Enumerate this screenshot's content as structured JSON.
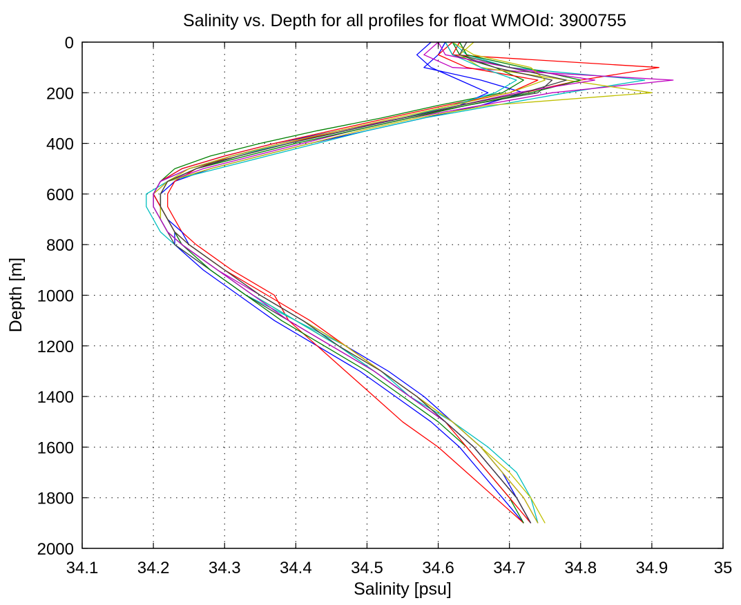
{
  "chart_data": {
    "type": "line",
    "title": "Salinity vs. Depth for all profiles for float WMOId: 3900755",
    "xlabel": "Salinity [psu]",
    "ylabel": "Depth [m]",
    "xlim": [
      34.1,
      35
    ],
    "ylim": [
      0,
      2000
    ],
    "y_reversed": true,
    "grid": true,
    "legend": "none",
    "x_ticks": [
      "34.1",
      "34.2",
      "34.3",
      "34.4",
      "34.5",
      "34.6",
      "34.7",
      "34.8",
      "34.9",
      "35"
    ],
    "y_ticks": [
      "0",
      "200",
      "400",
      "600",
      "800",
      "1000",
      "1200",
      "1400",
      "1600",
      "1800",
      "2000"
    ],
    "depth_levels": [
      0,
      50,
      100,
      150,
      200,
      250,
      300,
      350,
      400,
      450,
      500,
      550,
      600,
      650,
      700,
      750,
      800,
      900,
      1000,
      1100,
      1200,
      1300,
      1400,
      1500,
      1600,
      1700,
      1800,
      1900
    ],
    "colors": [
      "#0000ff",
      "#008000",
      "#ff0000",
      "#00bfbf",
      "#bf00bf",
      "#bfbf00",
      "#404040"
    ],
    "series": [
      {
        "color": "#0000ff",
        "values": [
          34.61,
          34.6,
          34.58,
          34.66,
          34.72,
          34.66,
          34.58,
          34.5,
          34.42,
          34.35,
          34.28,
          34.23,
          34.21,
          34.21,
          34.22,
          34.23,
          34.23,
          34.27,
          34.32,
          34.37,
          34.43,
          34.49,
          34.54,
          34.59,
          34.63,
          34.66,
          34.69,
          34.72
        ]
      },
      {
        "color": "#008000",
        "values": [
          34.62,
          34.63,
          34.68,
          34.72,
          34.69,
          34.6,
          34.52,
          34.43,
          34.35,
          34.28,
          34.23,
          34.21,
          34.2,
          34.21,
          34.21,
          34.22,
          34.24,
          34.29,
          34.34,
          34.4,
          34.46,
          34.51,
          34.56,
          34.61,
          34.65,
          34.68,
          34.71,
          34.73
        ]
      },
      {
        "color": "#ff0000",
        "values": [
          34.63,
          34.62,
          34.91,
          34.8,
          34.72,
          34.63,
          34.55,
          34.47,
          34.38,
          34.31,
          34.26,
          34.23,
          34.22,
          34.22,
          34.23,
          34.24,
          34.26,
          34.31,
          34.37,
          34.39,
          34.43,
          34.47,
          34.51,
          34.55,
          34.6,
          34.64,
          34.68,
          34.72
        ]
      },
      {
        "color": "#00bfbf",
        "values": [
          34.62,
          34.64,
          34.7,
          34.89,
          34.78,
          34.68,
          34.58,
          34.5,
          34.43,
          34.36,
          34.29,
          34.22,
          34.19,
          34.19,
          34.2,
          34.21,
          34.23,
          34.28,
          34.33,
          34.4,
          34.47,
          34.52,
          34.56,
          34.62,
          34.67,
          34.71,
          34.73,
          34.74
        ]
      },
      {
        "color": "#bf00bf",
        "values": [
          34.6,
          34.58,
          34.62,
          34.93,
          34.76,
          34.66,
          34.56,
          34.48,
          34.41,
          34.34,
          34.27,
          34.22,
          34.2,
          34.21,
          34.22,
          34.23,
          34.24,
          34.29,
          34.35,
          34.41,
          34.47,
          34.52,
          34.57,
          34.62,
          34.66,
          34.69,
          34.72,
          34.74
        ]
      },
      {
        "color": "#bfbf00",
        "values": [
          34.65,
          34.63,
          34.66,
          34.78,
          34.9,
          34.67,
          34.57,
          34.49,
          34.42,
          34.35,
          34.28,
          34.22,
          34.2,
          34.21,
          34.21,
          34.22,
          34.24,
          34.29,
          34.34,
          34.4,
          34.46,
          34.52,
          34.57,
          34.62,
          34.66,
          34.7,
          34.73,
          34.75
        ]
      },
      {
        "color": "#404040",
        "values": [
          34.61,
          34.62,
          34.68,
          34.76,
          34.74,
          34.64,
          34.55,
          34.47,
          34.39,
          34.32,
          34.25,
          34.21,
          34.2,
          34.2,
          34.21,
          34.22,
          34.23,
          34.28,
          34.33,
          34.39,
          34.45,
          34.51,
          34.56,
          34.61,
          34.65,
          34.68,
          34.71,
          34.73
        ]
      },
      {
        "color": "#0000ff",
        "values": [
          34.59,
          34.57,
          34.59,
          34.63,
          34.67,
          34.63,
          34.55,
          34.46,
          34.37,
          34.3,
          34.24,
          34.21,
          34.2,
          34.21,
          34.22,
          34.24,
          34.25,
          34.3,
          34.35,
          34.41,
          34.47,
          34.53,
          34.58,
          34.62,
          34.66,
          34.69,
          34.71,
          34.73
        ]
      },
      {
        "color": "#008000",
        "values": [
          34.63,
          34.64,
          34.72,
          34.8,
          34.73,
          34.64,
          34.56,
          34.48,
          34.4,
          34.33,
          34.26,
          34.22,
          34.21,
          34.21,
          34.22,
          34.23,
          34.24,
          34.28,
          34.33,
          34.38,
          34.44,
          34.5,
          34.55,
          34.6,
          34.64,
          34.67,
          34.7,
          34.72
        ]
      },
      {
        "color": "#ff0000",
        "values": [
          34.62,
          34.6,
          34.64,
          34.74,
          34.7,
          34.61,
          34.53,
          34.45,
          34.37,
          34.3,
          34.24,
          34.21,
          34.2,
          34.21,
          34.22,
          34.23,
          34.25,
          34.3,
          34.36,
          34.42,
          34.47,
          34.52,
          34.57,
          34.61,
          34.64,
          34.67,
          34.7,
          34.73
        ]
      },
      {
        "color": "#00bfbf",
        "values": [
          34.61,
          34.62,
          34.66,
          34.71,
          34.68,
          34.62,
          34.55,
          34.47,
          34.39,
          34.31,
          34.25,
          34.21,
          34.2,
          34.2,
          34.21,
          34.22,
          34.24,
          34.29,
          34.34,
          34.4,
          34.46,
          34.51,
          34.56,
          34.61,
          34.65,
          34.68,
          34.71,
          34.73
        ]
      },
      {
        "color": "#bf00bf",
        "values": [
          34.6,
          34.61,
          34.7,
          34.82,
          34.71,
          34.63,
          34.55,
          34.46,
          34.38,
          34.31,
          34.25,
          34.21,
          34.2,
          34.2,
          34.21,
          34.22,
          34.24,
          34.29,
          34.34,
          34.39,
          34.45,
          34.51,
          34.56,
          34.61,
          34.65,
          34.68,
          34.71,
          34.73
        ]
      },
      {
        "color": "#bfbf00",
        "values": [
          34.62,
          34.65,
          34.73,
          34.75,
          34.7,
          34.62,
          34.54,
          34.46,
          34.38,
          34.31,
          34.25,
          34.22,
          34.21,
          34.21,
          34.22,
          34.23,
          34.25,
          34.3,
          34.35,
          34.41,
          34.47,
          34.52,
          34.57,
          34.62,
          34.66,
          34.69,
          34.72,
          34.74
        ]
      },
      {
        "color": "#404040",
        "values": [
          34.64,
          34.63,
          34.7,
          34.78,
          34.72,
          34.63,
          34.55,
          34.47,
          34.39,
          34.32,
          34.26,
          34.22,
          34.21,
          34.21,
          34.22,
          34.23,
          34.25,
          34.3,
          34.35,
          34.41,
          34.46,
          34.52,
          34.57,
          34.61,
          34.65,
          34.68,
          34.71,
          34.73
        ]
      }
    ]
  }
}
